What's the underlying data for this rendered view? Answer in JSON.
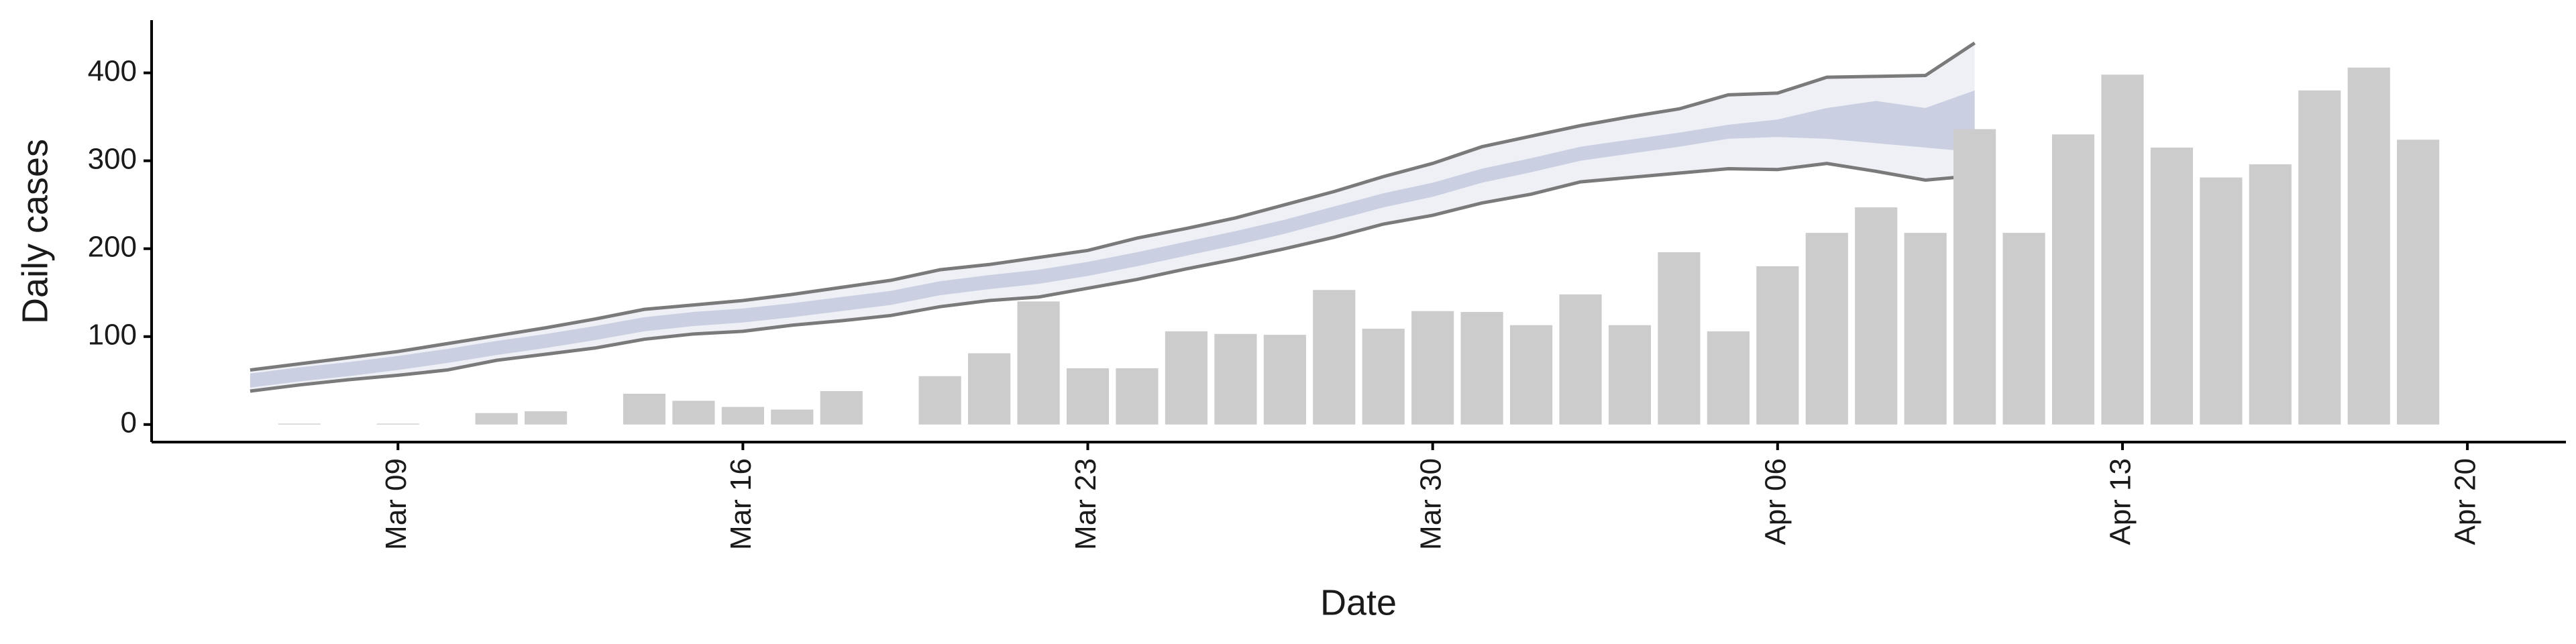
{
  "chart_data": {
    "type": "bar",
    "x_label": "Date",
    "y_label": "Daily cases",
    "x": [
      "Mar 07",
      "Mar 08",
      "Mar 09",
      "Mar 10",
      "Mar 11",
      "Mar 12",
      "Mar 13",
      "Mar 14",
      "Mar 15",
      "Mar 16",
      "Mar 17",
      "Mar 18",
      "Mar 19",
      "Mar 20",
      "Mar 21",
      "Mar 22",
      "Mar 23",
      "Mar 24",
      "Mar 25",
      "Mar 26",
      "Mar 27",
      "Mar 28",
      "Mar 29",
      "Mar 30",
      "Mar 31",
      "Apr 01",
      "Apr 02",
      "Apr 03",
      "Apr 04",
      "Apr 05",
      "Apr 06",
      "Apr 07",
      "Apr 08",
      "Apr 09",
      "Apr 10",
      "Apr 11",
      "Apr 12",
      "Apr 13",
      "Apr 14",
      "Apr 15",
      "Apr 16",
      "Apr 17",
      "Apr 18",
      "Apr 19"
    ],
    "values": [
      1,
      0,
      1,
      0,
      13,
      15,
      0,
      35,
      27,
      20,
      17,
      38,
      0,
      55,
      81,
      140,
      64,
      64,
      106,
      103,
      102,
      153,
      109,
      129,
      128,
      113,
      148,
      113,
      196,
      106,
      180,
      218,
      247,
      218,
      336,
      218,
      330,
      398,
      315,
      281,
      296,
      380,
      406,
      324
    ],
    "color": "#cccccc",
    "band_x": [
      "Mar 06",
      "Mar 07",
      "Mar 08",
      "Mar 09",
      "Mar 10",
      "Mar 11",
      "Mar 12",
      "Mar 13",
      "Mar 14",
      "Mar 15",
      "Mar 16",
      "Mar 17",
      "Mar 18",
      "Mar 19",
      "Mar 20",
      "Mar 21",
      "Mar 22",
      "Mar 23",
      "Mar 24",
      "Mar 25",
      "Mar 26",
      "Mar 27",
      "Mar 28",
      "Mar 29",
      "Mar 30",
      "Mar 31",
      "Apr 01",
      "Apr 02",
      "Apr 03",
      "Apr 04",
      "Apr 05",
      "Apr 06",
      "Apr 07",
      "Apr 08",
      "Apr 09",
      "Apr 10"
    ],
    "bands": [
      {
        "fill": "#eef0f6",
        "line_color": "#7a7a7a",
        "lower": [
          38,
          45,
          51,
          56,
          62,
          73,
          80,
          87,
          97,
          103,
          106,
          113,
          118,
          124,
          134,
          141,
          145,
          155,
          165,
          177,
          188,
          200,
          213,
          228,
          238,
          252,
          262,
          276,
          281,
          286,
          291,
          290,
          297,
          288,
          278,
          283
        ],
        "upper": [
          62,
          69,
          76,
          83,
          92,
          101,
          110,
          120,
          131,
          136,
          141,
          148,
          156,
          164,
          176,
          182,
          190,
          198,
          212,
          223,
          235,
          250,
          265,
          282,
          297,
          316,
          328,
          340,
          350,
          359,
          375,
          377,
          395,
          396,
          397,
          434
        ]
      },
      {
        "fill": "#cad0e2",
        "lower": [
          42,
          49,
          55,
          62,
          70,
          79,
          87,
          96,
          106,
          112,
          116,
          122,
          129,
          136,
          147,
          154,
          160,
          169,
          180,
          192,
          204,
          217,
          232,
          247,
          259,
          275,
          287,
          300,
          308,
          316,
          325,
          327,
          325,
          320,
          315,
          310
        ],
        "upper": [
          58,
          65,
          71,
          78,
          86,
          95,
          103,
          112,
          122,
          128,
          132,
          138,
          145,
          152,
          163,
          170,
          176,
          185,
          196,
          208,
          220,
          233,
          248,
          263,
          275,
          291,
          303,
          316,
          324,
          332,
          341,
          347,
          360,
          368,
          360,
          380
        ]
      }
    ],
    "xlim": [
      "Mar 04",
      "Apr 22"
    ],
    "xticks": [
      "Mar 09",
      "Mar 16",
      "Mar 23",
      "Mar 30",
      "Apr 06",
      "Apr 13",
      "Apr 20"
    ],
    "ylim": [
      -20,
      460
    ],
    "yticks": [
      0,
      100,
      200,
      300,
      400
    ]
  }
}
